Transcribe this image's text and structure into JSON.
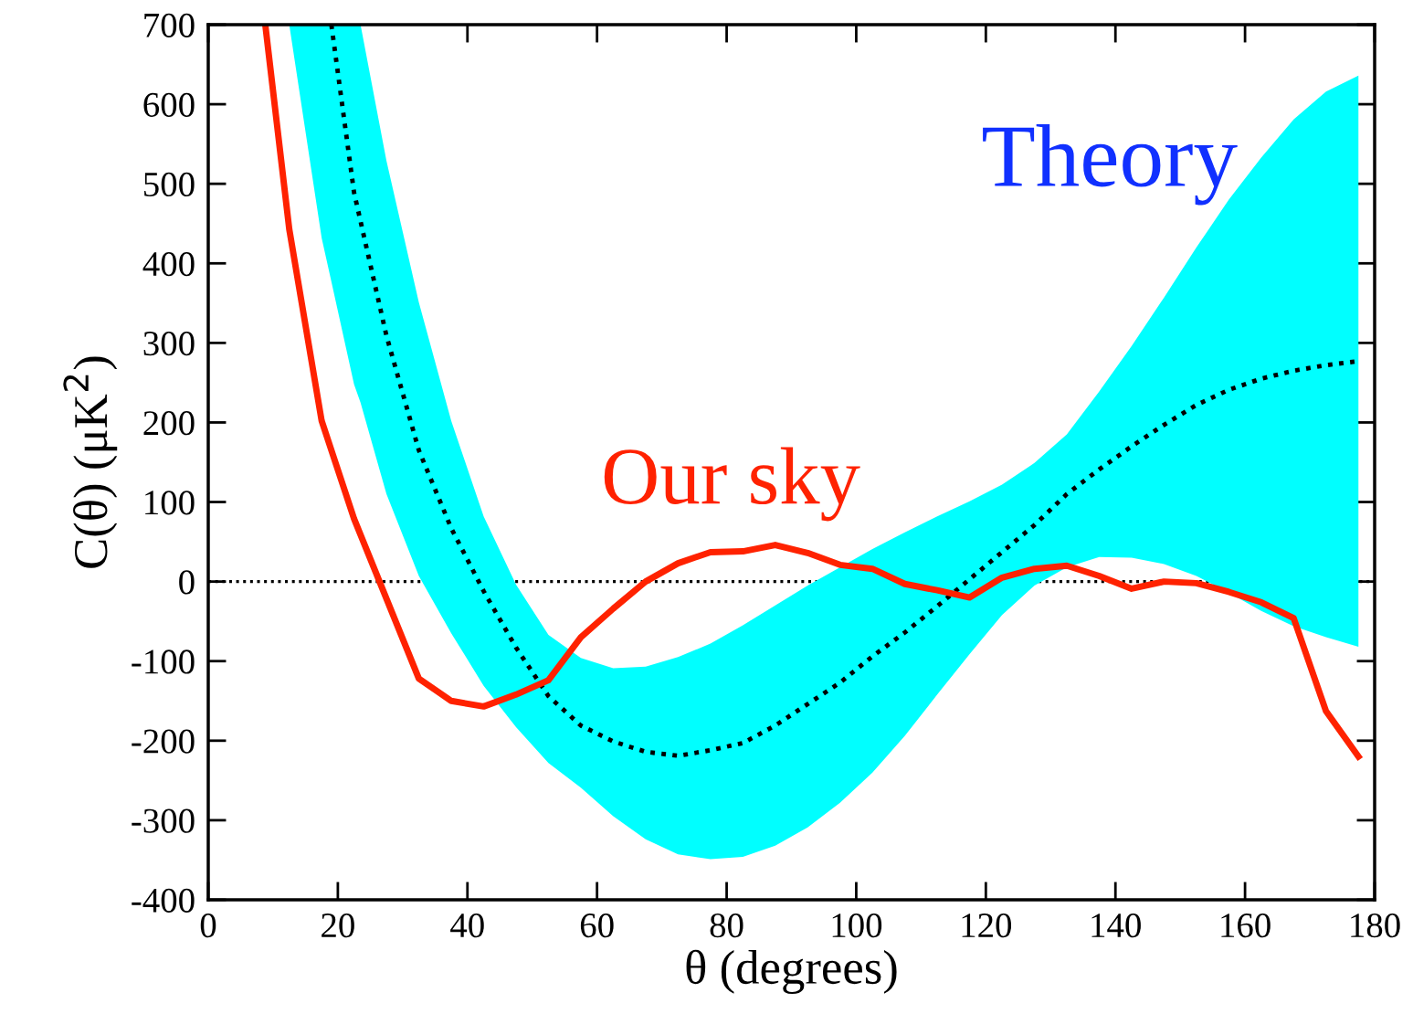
{
  "chart_data": {
    "type": "line",
    "xlabel": "θ (degrees)",
    "ylabel": "C(θ) (μK$^{2}$)",
    "xlim": [
      0,
      180
    ],
    "xticks": [
      0,
      20,
      40,
      60,
      80,
      100,
      120,
      140,
      160,
      180
    ],
    "ylim": [
      -400,
      700
    ],
    "yticks": [
      -400,
      -300,
      -200,
      -100,
      0,
      100,
      200,
      300,
      400,
      500,
      600,
      700
    ],
    "grid": false,
    "ref_lines": [
      {
        "axis": "y",
        "value": 0,
        "color": "#000000",
        "line_style": "dotted"
      }
    ],
    "series": [
      {
        "name": "Theory",
        "color": "#000000",
        "line_style": "dotted",
        "x": [
          12.5,
          17.5,
          19,
          22.5,
          23.5,
          27.5,
          32.5,
          37.5,
          42.5,
          47.5,
          52.5,
          57.5,
          62.5,
          67.5,
          72.5,
          77.5,
          82.5,
          87.5,
          92.5,
          97.5,
          102.5,
          107.5,
          112.5,
          117.5,
          122.5,
          127.5,
          132.5,
          137.5,
          142.5,
          147.5,
          152.5,
          157.5,
          162.5,
          167.5,
          172.5,
          177.5
        ],
        "values": [
          null,
          null,
          700,
          489,
          453,
          309,
          165,
          67,
          -12,
          -83,
          -144,
          -181,
          -201,
          -214,
          -219,
          -212,
          -203,
          -181,
          -154,
          -127,
          -94,
          -64,
          -31,
          3,
          37,
          71,
          110,
          141,
          170,
          197,
          222,
          241,
          255,
          265,
          272,
          277
        ],
        "upper": [
          700,
          700,
          700,
          700,
          700,
          529,
          351,
          202,
          82,
          -4,
          -67,
          -96,
          -109,
          -107,
          -95,
          -78,
          -55,
          -30,
          -5,
          18,
          41,
          62,
          82,
          101,
          122,
          149,
          185,
          239,
          296,
          357,
          420,
          480,
          533,
          581,
          616,
          636
        ],
        "lower": [
          700,
          432,
          377,
          248,
          225,
          110,
          7,
          -65,
          -131,
          -183,
          -228,
          -259,
          -295,
          -324,
          -343,
          -349,
          -346,
          -332,
          -309,
          -278,
          -240,
          -194,
          -142,
          -91,
          -42,
          -5,
          18,
          31,
          30,
          22,
          7,
          -14,
          -37,
          -56,
          -70,
          -82
        ]
      },
      {
        "name": "Our sky",
        "color": "#ff2200",
        "line_style": "solid",
        "x": [
          8.8,
          12.5,
          17.5,
          22.5,
          32.5,
          37.5,
          42.5,
          47.5,
          52.5,
          57.5,
          62.5,
          67.5,
          72.5,
          77.5,
          82.5,
          87.5,
          92.5,
          97.5,
          102.5,
          107.5,
          112.5,
          117.5,
          122.5,
          127.5,
          132.5,
          137.5,
          142.5,
          147.5,
          152.5,
          157.5,
          162.5,
          167.5,
          172.5,
          177.5
        ],
        "values": [
          700,
          443,
          202,
          79,
          -122,
          -150,
          -157,
          -142,
          -124,
          -70,
          -34,
          0,
          23,
          37,
          38,
          46,
          36,
          21,
          16,
          -3,
          -11,
          -20,
          5,
          16,
          20,
          7,
          -9,
          0,
          -2,
          -13,
          -26,
          -46,
          -163,
          -220
        ]
      }
    ]
  }
}
